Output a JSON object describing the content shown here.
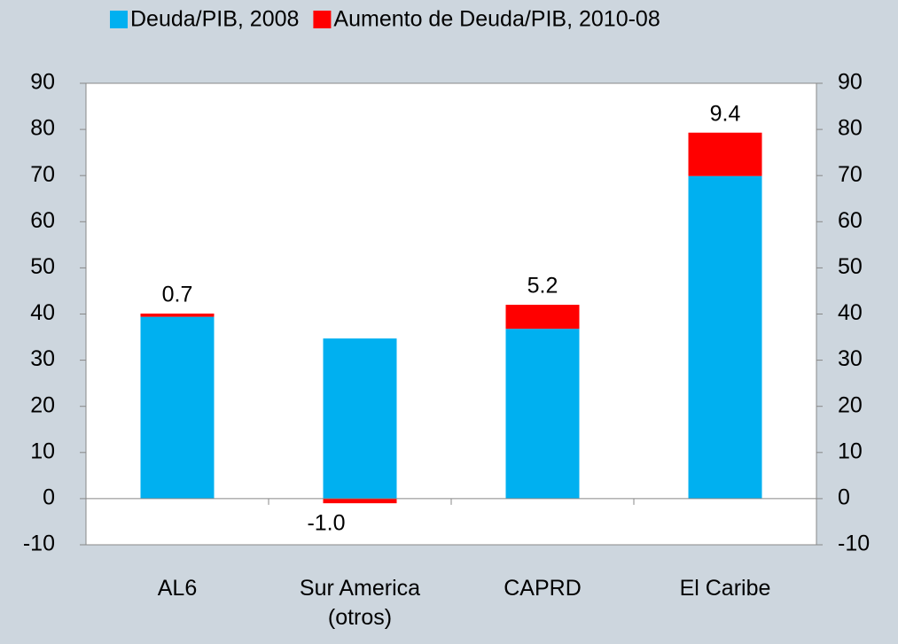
{
  "chart_data": {
    "type": "stacked_bar",
    "categories": [
      "AL6",
      "Sur America (otros)",
      "CAPRD",
      "El Caribe"
    ],
    "series": [
      {
        "name": "Deuda/PIB, 2008",
        "color": "#00b0f0",
        "values": [
          39.4,
          34.7,
          36.8,
          69.9
        ]
      },
      {
        "name": "Aumento de Deuda/PIB, 2010-08",
        "color": "#ff0000",
        "values": [
          0.7,
          -1.0,
          5.2,
          9.4
        ],
        "value_labels": [
          "0.7",
          "-1.0",
          "5.2",
          "9.4"
        ]
      }
    ],
    "ylim": [
      -10,
      90
    ],
    "yticks": [
      -10,
      0,
      10,
      20,
      30,
      40,
      50,
      60,
      70,
      80,
      90
    ],
    "y2lim": [
      -10,
      90
    ],
    "y2ticks": [
      -10,
      0,
      10,
      20,
      30,
      40,
      50,
      60,
      70,
      80,
      90
    ],
    "legend": "top",
    "grid": false
  }
}
